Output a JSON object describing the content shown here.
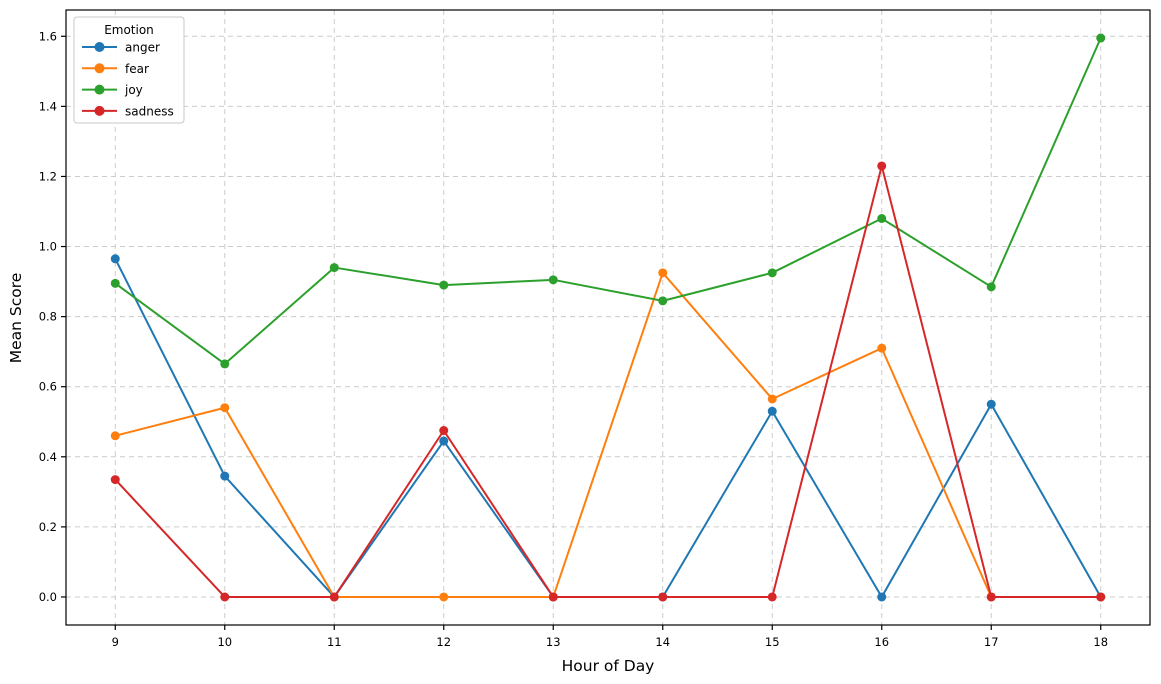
{
  "chart_data": {
    "type": "line",
    "x": [
      9,
      10,
      11,
      12,
      13,
      14,
      15,
      16,
      17,
      18
    ],
    "series": [
      {
        "name": "anger",
        "color": "#1f77b4",
        "values": [
          0.965,
          0.345,
          0.0,
          0.445,
          0.0,
          0.0,
          0.53,
          0.0,
          0.55,
          0.0
        ]
      },
      {
        "name": "fear",
        "color": "#ff7f0e",
        "values": [
          0.46,
          0.54,
          0.0,
          0.0,
          0.0,
          0.925,
          0.565,
          0.71,
          0.0,
          0.0
        ]
      },
      {
        "name": "joy",
        "color": "#2ca02c",
        "values": [
          0.895,
          0.665,
          0.94,
          0.89,
          0.905,
          0.845,
          0.925,
          1.08,
          0.885,
          1.595
        ]
      },
      {
        "name": "sadness",
        "color": "#d62728",
        "values": [
          0.335,
          0.0,
          0.0,
          0.475,
          0.0,
          0.0,
          0.0,
          1.23,
          0.0,
          0.0
        ]
      }
    ],
    "title": "",
    "xlabel": "Hour of Day",
    "ylabel": "Mean Score",
    "xticks": [
      "9",
      "10",
      "11",
      "12",
      "13",
      "14",
      "15",
      "16",
      "17",
      "18"
    ],
    "yticks": [
      "0.0",
      "0.2",
      "0.4",
      "0.6",
      "0.8",
      "1.0",
      "1.2",
      "1.4",
      "1.6"
    ],
    "xlim": [
      8.55,
      18.45
    ],
    "ylim": [
      -0.08,
      1.675
    ],
    "grid": {
      "on": true,
      "style": "dashed",
      "color": "#cccccc"
    },
    "legend": {
      "title": "Emotion",
      "position": "upper-left",
      "entries": [
        "anger",
        "fear",
        "joy",
        "sadness"
      ]
    }
  },
  "style_colors": {
    "background": "#ffffff",
    "spine": "#000000",
    "legend_border": "#c9c9c9",
    "legend_background": "#ffffff"
  }
}
